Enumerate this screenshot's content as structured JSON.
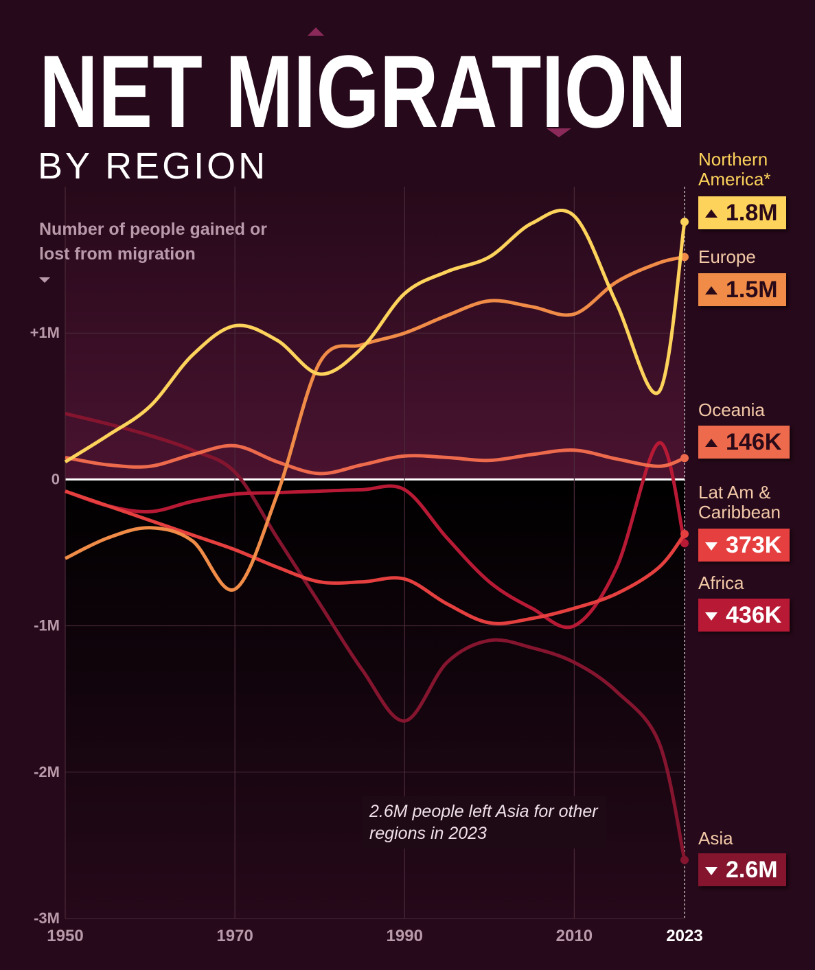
{
  "chart_data": {
    "type": "line",
    "title": "NET MIGRATION",
    "subtitle": "BY REGION",
    "y_label": "Number of people gained or lost from migration",
    "annotation": "2.6M people left Asia for other regions in 2023",
    "x": [
      1950,
      1955,
      1960,
      1965,
      1970,
      1975,
      1980,
      1985,
      1990,
      1995,
      2000,
      2005,
      2010,
      2015,
      2020,
      2023
    ],
    "xlim": [
      1950,
      2023
    ],
    "xticks": [
      1950,
      1970,
      1990,
      2010,
      2023
    ],
    "ylim": [
      -3,
      2
    ],
    "yticks": [
      {
        "value": 1,
        "label": "+1M"
      },
      0,
      {
        "value": -1,
        "label": "-1M"
      },
      {
        "value": -2,
        "label": "-2M"
      },
      {
        "value": -3,
        "label": "-3M"
      }
    ],
    "series": [
      {
        "name": "Northern America*",
        "color": "#fdd35c",
        "values": [
          0.12,
          0.3,
          0.5,
          0.85,
          1.05,
          0.95,
          0.72,
          0.9,
          1.27,
          1.42,
          1.52,
          1.75,
          1.8,
          1.2,
          0.6,
          1.76
        ],
        "value_labels": [
          "1.8M"
        ]
      },
      {
        "name": "Europe",
        "color": "#f08c48",
        "values": [
          -0.54,
          -0.4,
          -0.33,
          -0.42,
          -0.75,
          -0.1,
          0.8,
          0.92,
          1.0,
          1.12,
          1.22,
          1.18,
          1.13,
          1.35,
          1.48,
          1.52
        ],
        "value_labels": [
          "1.5M"
        ]
      },
      {
        "name": "Oceania",
        "color": "#ee6a4c",
        "values": [
          0.15,
          0.1,
          0.09,
          0.17,
          0.23,
          0.12,
          0.04,
          0.1,
          0.16,
          0.15,
          0.13,
          0.17,
          0.2,
          0.14,
          0.09,
          0.146
        ],
        "value_labels": [
          "146K"
        ]
      },
      {
        "name": "Lat Am & Caribbean",
        "color": "#e5403f",
        "values": [
          -0.08,
          -0.18,
          -0.28,
          -0.38,
          -0.48,
          -0.6,
          -0.7,
          -0.7,
          -0.68,
          -0.85,
          -0.98,
          -0.95,
          -0.88,
          -0.78,
          -0.6,
          -0.373
        ],
        "value_labels": [
          "373K"
        ]
      },
      {
        "name": "Africa",
        "color": "#b81a35",
        "values": [
          -0.08,
          -0.18,
          -0.22,
          -0.15,
          -0.1,
          -0.09,
          -0.08,
          -0.07,
          -0.07,
          -0.4,
          -0.7,
          -0.88,
          -1.0,
          -0.6,
          0.25,
          -0.436
        ],
        "value_labels": [
          "436K"
        ]
      },
      {
        "name": "Asia",
        "color": "#85152f",
        "values": [
          0.45,
          0.38,
          0.3,
          0.2,
          0.05,
          -0.4,
          -0.85,
          -1.3,
          -1.65,
          -1.25,
          -1.1,
          -1.15,
          -1.25,
          -1.45,
          -1.8,
          -2.6
        ],
        "value_labels": [
          "2.6M"
        ]
      }
    ]
  }
}
